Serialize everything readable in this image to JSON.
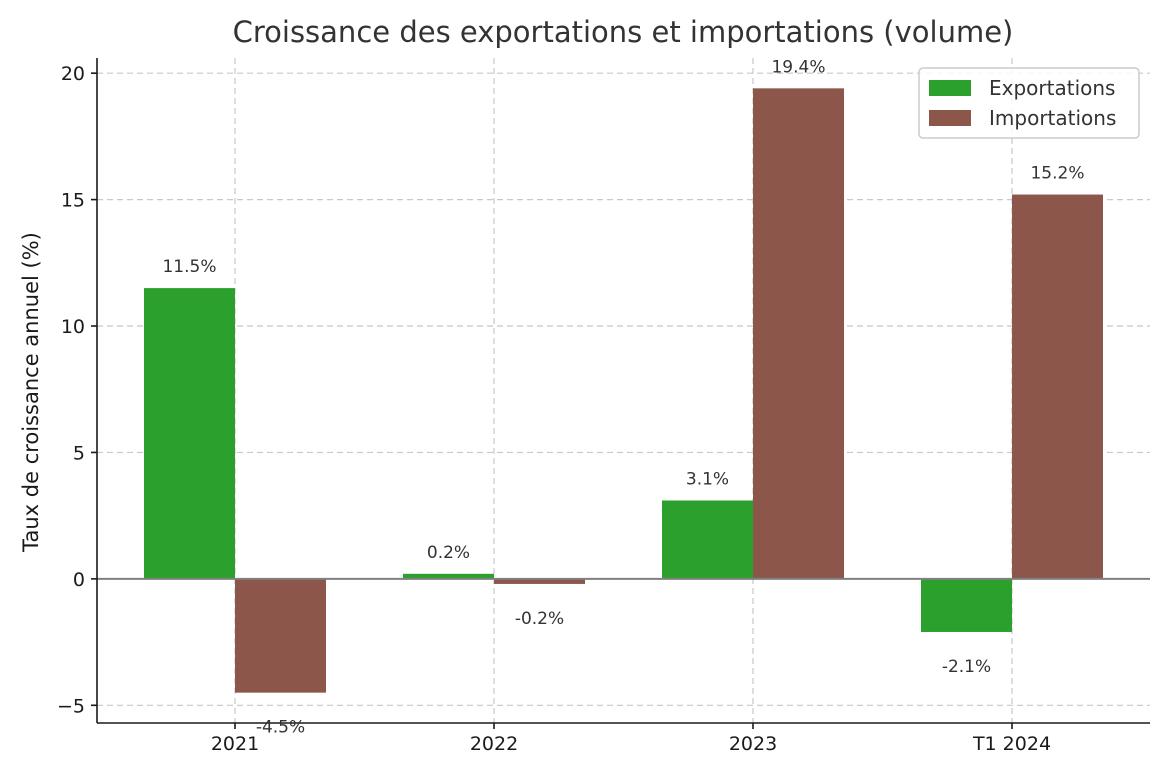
{
  "chart_data": {
    "type": "bar",
    "title": "Croissance des exportations et importations (volume)",
    "xlabel": "",
    "ylabel": "Taux de croissance annuel (%)",
    "categories": [
      "2021",
      "2022",
      "2023",
      "T1 2024"
    ],
    "series": [
      {
        "name": "Exportations",
        "color": "#2ca02c",
        "values": [
          11.5,
          0.2,
          3.1,
          -2.1
        ],
        "labels": [
          "11.5%",
          "0.2%",
          "3.1%",
          "-2.1%"
        ]
      },
      {
        "name": "Importations",
        "color": "#8c564b",
        "values": [
          -4.5,
          -0.2,
          19.4,
          15.2
        ],
        "labels": [
          "-4.5%",
          "-0.2%",
          "19.4%",
          "15.2%"
        ]
      }
    ],
    "ylim": [
      -5.7,
      20.6
    ],
    "yticks": [
      -5,
      0,
      5,
      10,
      15,
      20
    ],
    "ytick_labels": [
      "−5",
      "0",
      "5",
      "10",
      "15",
      "20"
    ],
    "grid": true,
    "legend_position": "top-right"
  }
}
